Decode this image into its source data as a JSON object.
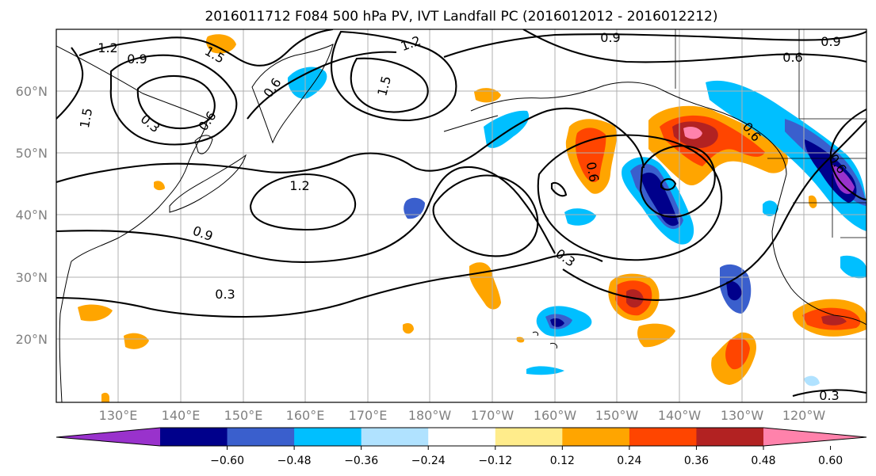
{
  "title": "2016011712 F084 500 hPa PV, IVT Landfall PC (2016012012 - 2016012212)",
  "lon_labels": [
    "130°E",
    "140°E",
    "150°E",
    "160°E",
    "170°E",
    "180°W",
    "170°W",
    "160°W",
    "150°W",
    "140°W",
    "130°W",
    "120°W"
  ],
  "lat_labels": [
    "60°N",
    "50°N",
    "40°N",
    "30°N",
    "20°N"
  ],
  "contour_labels": [
    "1.2",
    "1.5",
    "0.9",
    "0.3",
    "0.6",
    "1.5",
    "0.6",
    "1.2",
    "1.5",
    "0.9",
    "0.6",
    "0.9",
    "1.2",
    "0.9",
    "0.3",
    "0.3",
    "0.6",
    "0.6",
    "0.6",
    "0.3"
  ],
  "colorbar": {
    "colors": [
      "#9932cc",
      "#00008b",
      "#3a5fcd",
      "#00bfff",
      "#b0e2ff",
      "#ffffff",
      "#ffec8b",
      "#ffa500",
      "#ff4500",
      "#b22222",
      "#ff82ab"
    ],
    "tick_labels": [
      "−0.60",
      "−0.48",
      "−0.36",
      "−0.24",
      "−0.12",
      "0.12",
      "0.24",
      "0.36",
      "0.48",
      "0.60"
    ]
  }
}
